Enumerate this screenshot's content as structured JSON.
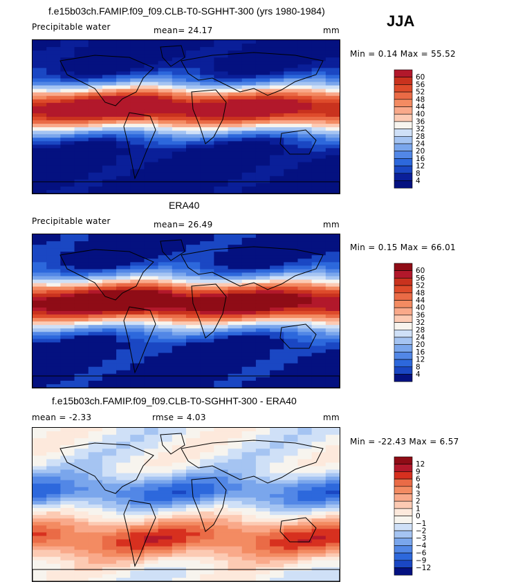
{
  "season": "JJA",
  "panels": [
    {
      "title": "f.e15b03ch.FAMIP.f09_f09.CLB-T0-SGHHT-300 (yrs 1980-1984)",
      "left_text": "Precipitable water",
      "center_text": "mean=  24.17",
      "units": "mm",
      "minmax": "Min =    0.14  Max =   55.52"
    },
    {
      "title": "ERA40",
      "left_text": "Precipitable water",
      "center_text": "mean=  26.49",
      "units": "mm",
      "minmax": "Min =    0.15  Max =   66.01"
    },
    {
      "title": "f.e15b03ch.FAMIP.f09_f09.CLB-T0-SGHHT-300 - ERA40",
      "left_text": "mean =   -2.33",
      "center_text": "rmse =    4.03",
      "units": "mm",
      "minmax": "Min =  -22.43  Max =    6.57"
    }
  ],
  "chart_data": [
    {
      "type": "heatmap",
      "title": "f.e15b03ch.FAMIP.f09_f09.CLB-T0-SGHHT-300 (yrs 1980-1984)",
      "variable": "Precipitable water",
      "units": "mm",
      "mean": 24.17,
      "min": 0.14,
      "max": 55.52,
      "levels": [
        "60",
        "56",
        "52",
        "48",
        "44",
        "40",
        "36",
        "32",
        "28",
        "24",
        "20",
        "16",
        "12",
        "8",
        "4"
      ],
      "colors": [
        "#b2182b",
        "#c9321e",
        "#de4b2b",
        "#ea6b46",
        "#f38b62",
        "#f9a98a",
        "#fccab3",
        "#f7f4ee",
        "#cfe0f7",
        "#a5c4f2",
        "#7aa6ec",
        "#5287e6",
        "#2d68dc",
        "#1a47c3",
        "#0a1f99",
        "#041180"
      ]
    },
    {
      "type": "heatmap",
      "title": "ERA40",
      "variable": "Precipitable water",
      "units": "mm",
      "mean": 26.49,
      "min": 0.15,
      "max": 66.01,
      "levels": [
        "60",
        "56",
        "52",
        "48",
        "44",
        "40",
        "36",
        "32",
        "28",
        "24",
        "20",
        "16",
        "12",
        "8",
        "4"
      ],
      "colors": [
        "#8f0c16",
        "#b2182b",
        "#c9321e",
        "#de4b2b",
        "#ea6b46",
        "#f38b62",
        "#f9a98a",
        "#fccab3",
        "#f7f4ee",
        "#cfe0f7",
        "#a5c4f2",
        "#7aa6ec",
        "#5287e6",
        "#2d68dc",
        "#1a47c3",
        "#041180"
      ]
    },
    {
      "type": "heatmap",
      "title": "f.e15b03ch.FAMIP.f09_f09.CLB-T0-SGHHT-300 - ERA40",
      "units": "mm",
      "mean": -2.33,
      "rmse": 4.03,
      "min": -22.43,
      "max": 6.57,
      "levels": [
        "12",
        "9",
        "6",
        "4",
        "3",
        "2",
        "1",
        "0",
        "−1",
        "−2",
        "−3",
        "−4",
        "−6",
        "−9",
        "−12"
      ],
      "colors": [
        "#8f0c16",
        "#b2182b",
        "#d7301f",
        "#ea6b46",
        "#f38b62",
        "#f9a98a",
        "#fccab3",
        "#fde9dc",
        "#f7f4ee",
        "#cfe0f7",
        "#a5c4f2",
        "#7aa6ec",
        "#5287e6",
        "#2d68dc",
        "#1a47c3",
        "#041180"
      ]
    }
  ]
}
